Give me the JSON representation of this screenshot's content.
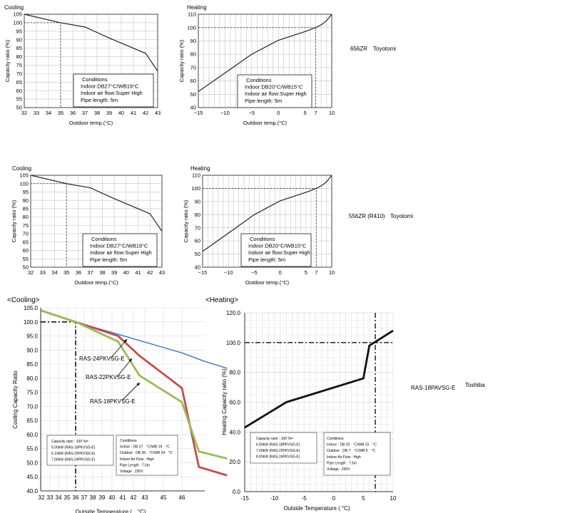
{
  "labels": {
    "cooling": "Cooling",
    "heating": "Heating",
    "outdoor_temp": "Outdoor temp.(°C)",
    "capacity_ratio": "Capacity ratio (%)"
  },
  "side_labels": [
    {
      "model": "656ZR",
      "brand": "Toyotomi"
    },
    {
      "model": "556ZR (R410)",
      "brand": "Toyotomi"
    },
    {
      "model": "RAS-18PAVSG-E",
      "brand": "Toshiba"
    }
  ],
  "conditions": {
    "title": "Conditions",
    "cooling_indoor": "Indoor:DB27°C/WB19°C",
    "heating_indoor": "Indoor:DB20°C/WB15°C",
    "air_flow": "Indoor air flow:Super High",
    "pipe": "Pipe length: 5m"
  },
  "toshiba": {
    "cooling_title": "<Cooling>",
    "heating_title": "<Heating>",
    "cooling_ylabel": "Cooling Capacity Ratio",
    "heating_ylabel": "Heating Capacity ratio (%)",
    "cooling_xlabel": "Outside Temperature (　°C)",
    "heating_xlabel": "Outside Temperature ( °C)",
    "model_24": "RAS-24PKVSG-E",
    "model_22": "RAS-22PKVSG-E",
    "model_18": "RAS-18PKVSG-E",
    "cap_box": [
      "Capacity ratio : 100 %=",
      "5.00kW (RAS-18PKVSG-E)",
      "6.10kW (RAS-22PKVSG-E)",
      "7.00kW (RAS-24PKVSG-E)"
    ],
    "cap_box_heat": [
      "Capacity ratio : 100 %=",
      "6.00kW (RAS-18PKVSG-E)",
      "7.00kW (RAS-22PKVSG-E)",
      "8.00kW (RAS-24PKVSG-E)"
    ],
    "cool_cond": [
      "Conditions",
      "Indoor : DB 27　°C/WB 19　°C",
      "Outdoor : DB 35　°C/WB 24　°C",
      "Indoor Air Flow : High",
      "Pipe Length : 7.5m",
      "Voltage : 230V"
    ],
    "heat_cond": [
      "Conditions",
      "Indoor : DB 20　°C/WB 15　°C",
      "Outdoor : DB 7　°C/WB 6　°C",
      "Indoor Air Flow : High",
      "Pipe Length : 7.5m",
      "Voltage : 230V"
    ]
  },
  "chart_data": [
    {
      "type": "line",
      "title": "Cooling",
      "xlabel": "Outdoor temp.(°C)",
      "ylabel": "Capacity ratio (%)",
      "xlim": [
        32,
        43
      ],
      "ylim": [
        50,
        105
      ],
      "x_ticks": [
        32,
        33,
        34,
        35,
        36,
        37,
        38,
        39,
        40,
        41,
        42,
        43
      ],
      "y_ticks": [
        50,
        55,
        60,
        65,
        70,
        75,
        80,
        85,
        90,
        95,
        100,
        105
      ],
      "grid": true,
      "reference": {
        "x": 35,
        "y": 100
      },
      "series": [
        {
          "x": [
            32,
            35,
            37,
            39,
            41,
            42,
            43
          ],
          "y": [
            105,
            100,
            97.5,
            91,
            85,
            82,
            71.5
          ]
        }
      ]
    },
    {
      "type": "line",
      "title": "Heating",
      "xlabel": "Outdoor temp.(°C)",
      "ylabel": "Capacity ratio (%)",
      "xlim": [
        -15,
        10
      ],
      "ylim": [
        40,
        110
      ],
      "x_ticks": [
        -15,
        -10,
        -5,
        0,
        5,
        7,
        10
      ],
      "x_grid": [
        -15,
        -14,
        -13,
        -12,
        -11,
        -10,
        -9,
        -8,
        -7,
        -6,
        -5,
        -4,
        -3,
        -2,
        -1,
        0,
        1,
        2,
        3,
        4,
        5,
        6,
        7,
        8,
        9,
        10
      ],
      "y_ticks": [
        40,
        50,
        60,
        70,
        80,
        90,
        100,
        110
      ],
      "grid": true,
      "reference": {
        "x": 7,
        "y": 100
      },
      "series": [
        {
          "x": [
            -15,
            -10,
            -5,
            0,
            5,
            7,
            8,
            9,
            10
          ],
          "y": [
            52,
            66,
            80,
            90.5,
            97,
            100,
            102,
            105,
            110
          ]
        }
      ]
    },
    {
      "type": "line",
      "title": "Cooling",
      "xlabel": "Outdoor temp.(°C)",
      "ylabel": "Capacity ratio (%)",
      "xlim": [
        32,
        43
      ],
      "ylim": [
        50,
        105
      ],
      "x_ticks": [
        32,
        33,
        34,
        35,
        36,
        37,
        38,
        39,
        40,
        41,
        42,
        43
      ],
      "y_ticks": [
        50,
        55,
        60,
        65,
        70,
        75,
        80,
        85,
        90,
        95,
        100,
        105
      ],
      "grid": true,
      "reference": {
        "x": 35,
        "y": 100
      },
      "series": [
        {
          "x": [
            32,
            35,
            37,
            39,
            41,
            42,
            43
          ],
          "y": [
            105,
            100,
            97.5,
            91,
            85,
            82,
            71.5
          ]
        }
      ]
    },
    {
      "type": "line",
      "title": "Heating",
      "xlabel": "Outdoor temp.(°C)",
      "ylabel": "Capacity ratio (%)",
      "xlim": [
        -15,
        10
      ],
      "ylim": [
        40,
        110
      ],
      "x_ticks": [
        -15,
        -10,
        -5,
        0,
        5,
        7,
        10
      ],
      "x_grid": [
        -15,
        -14,
        -13,
        -12,
        -11,
        -10,
        -9,
        -8,
        -7,
        -6,
        -5,
        -4,
        -3,
        -2,
        -1,
        0,
        1,
        2,
        3,
        4,
        5,
        6,
        7,
        8,
        9,
        10
      ],
      "y_ticks": [
        40,
        50,
        60,
        70,
        80,
        90,
        100,
        110
      ],
      "grid": true,
      "reference": {
        "x": 7,
        "y": 100
      },
      "series": [
        {
          "x": [
            -15,
            -10,
            -5,
            0,
            5,
            7,
            8,
            9,
            10
          ],
          "y": [
            52,
            66,
            80,
            90.5,
            97,
            100,
            102,
            105,
            110
          ]
        }
      ]
    },
    {
      "type": "line",
      "title": "<Cooling>",
      "xlabel": "Outside Temperature (　°C)",
      "ylabel": "Cooling Capacity Ratio",
      "xlim": [
        32,
        52
      ],
      "ylim": [
        40,
        105
      ],
      "x_ticks": [
        32,
        33,
        34,
        35,
        36,
        37,
        38,
        39,
        40,
        41,
        42,
        43,
        45,
        46
      ],
      "y_ticks": [
        40,
        45,
        50,
        55,
        60,
        65,
        70,
        75,
        80,
        85,
        90,
        95,
        100,
        105
      ],
      "y_tick_labels": [
        "40.0",
        "45.0",
        "50.0",
        "55.0",
        "60.0",
        "65.0",
        "70.0",
        "75.0",
        "80.0",
        "85.0",
        "90.0",
        "95.0",
        "100.0",
        "105.0"
      ],
      "grid": true,
      "reference": {
        "x": 36,
        "y": 100
      },
      "series": [
        {
          "name": "RAS-24PKVSG-E",
          "color": "#4a7fc1",
          "x": [
            32,
            36,
            41,
            46,
            48,
            50
          ],
          "y": [
            104,
            100,
            94.5,
            89,
            86,
            83.5
          ]
        },
        {
          "name": "RAS-22PKVSG-E",
          "color": "#c0504d",
          "x": [
            32,
            36,
            40,
            42,
            46,
            47.5,
            50
          ],
          "y": [
            104,
            100,
            95,
            88,
            76.5,
            48.5,
            45.5
          ]
        },
        {
          "name": "RAS-18PKVSG-E",
          "color": "#9bbb59",
          "x": [
            32,
            36,
            40,
            42,
            46,
            47.5,
            50
          ],
          "y": [
            104,
            100,
            93,
            81,
            71.5,
            54,
            51.5
          ]
        }
      ]
    },
    {
      "type": "line",
      "title": "<Heating>",
      "xlabel": "Outside Temperature ( °C)",
      "ylabel": "Heating Capacity ratio (%)",
      "xlim": [
        -15,
        10
      ],
      "ylim": [
        0,
        120
      ],
      "x_ticks": [
        -15,
        -10,
        -5,
        0,
        5,
        10
      ],
      "y_ticks": [
        0,
        20,
        40,
        60,
        80,
        100,
        120
      ],
      "y_tick_labels": [
        "0.0",
        "20.0",
        "40.0",
        "60.0",
        "80.0",
        "100.0",
        "120.0"
      ],
      "grid": true,
      "reference": {
        "x": 7,
        "y": 100
      },
      "series": [
        {
          "x": [
            -15,
            -8,
            5,
            6,
            10
          ],
          "y": [
            43,
            60,
            76,
            98,
            108
          ]
        }
      ]
    }
  ]
}
